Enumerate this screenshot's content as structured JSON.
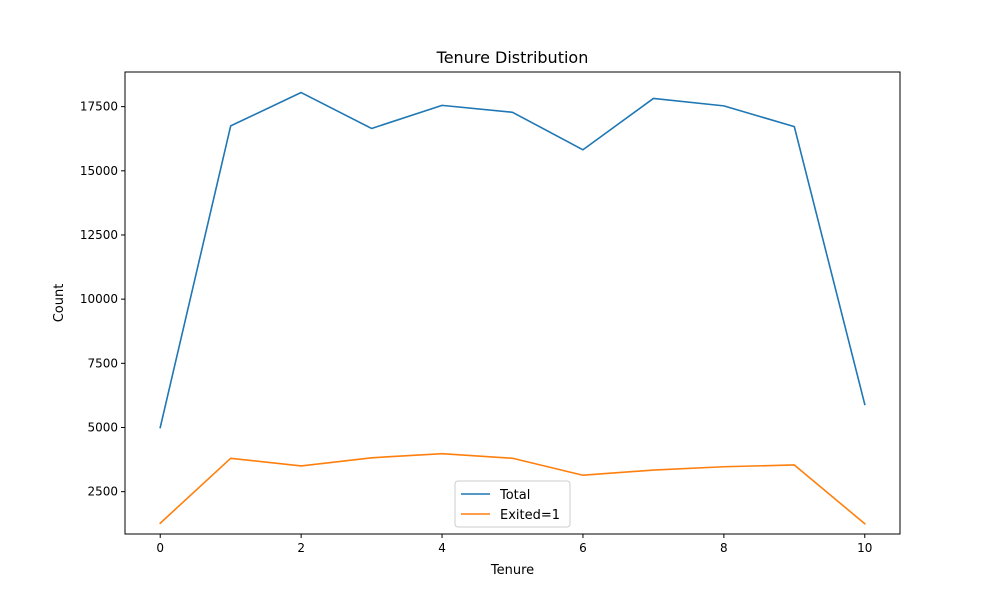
{
  "chart_data": {
    "type": "line",
    "title": "Tenure Distribution",
    "xlabel": "Tenure",
    "ylabel": "Count",
    "x": [
      0,
      1,
      2,
      3,
      4,
      5,
      6,
      7,
      8,
      9,
      10
    ],
    "xlim": [
      -0.5,
      10.5
    ],
    "ylim": [
      850,
      18850
    ],
    "xticks": [
      0,
      2,
      4,
      6,
      8,
      10
    ],
    "yticks": [
      2500,
      5000,
      7500,
      10000,
      12500,
      15000,
      17500
    ],
    "grid": false,
    "legend_position": "lower-center",
    "series": [
      {
        "name": "Total",
        "color": "#1f77b4",
        "values": [
          5000,
          16750,
          18050,
          16650,
          17550,
          17280,
          15820,
          17820,
          17530,
          16720,
          5900
        ]
      },
      {
        "name": "Exited=1",
        "color": "#ff7f0e",
        "values": [
          1270,
          3800,
          3500,
          3820,
          3980,
          3800,
          3140,
          3340,
          3470,
          3540,
          1250
        ]
      }
    ]
  }
}
